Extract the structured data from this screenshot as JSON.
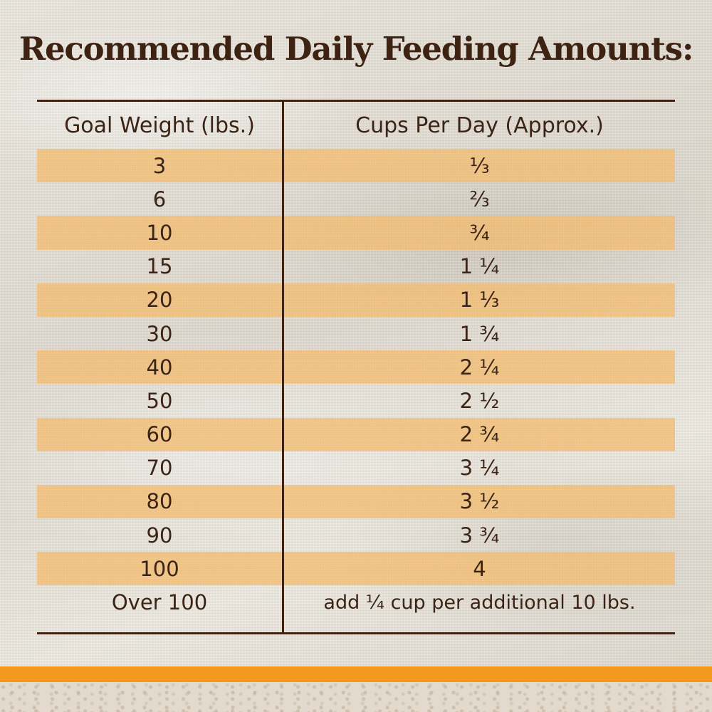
{
  "title": "Recommended Daily Feeding Amounts:",
  "table": {
    "headers": {
      "weight": "Goal Weight (lbs.)",
      "cups": "Cups Per Day (Approx.)"
    },
    "rows": [
      {
        "weight": "3",
        "cups": "⅓"
      },
      {
        "weight": "6",
        "cups": "⅔"
      },
      {
        "weight": "10",
        "cups": "¾"
      },
      {
        "weight": "15",
        "cups": "1 ¼"
      },
      {
        "weight": "20",
        "cups": "1 ⅓"
      },
      {
        "weight": "30",
        "cups": "1 ¾"
      },
      {
        "weight": "40",
        "cups": "2 ¼"
      },
      {
        "weight": "50",
        "cups": "2 ½"
      },
      {
        "weight": "60",
        "cups": "2 ¾"
      },
      {
        "weight": "70",
        "cups": "3 ¼"
      },
      {
        "weight": "80",
        "cups": "3 ½"
      },
      {
        "weight": "90",
        "cups": "3 ¾"
      },
      {
        "weight": "100",
        "cups": "4"
      },
      {
        "weight": "Over 100",
        "cups": "add ¼ cup per additional 10 lbs."
      }
    ]
  },
  "colors": {
    "text": "#3b2416",
    "rule": "#3e2212",
    "band": "#f0b25c",
    "accent_bar": "#f39a1e",
    "background": "#e6e2d9"
  }
}
